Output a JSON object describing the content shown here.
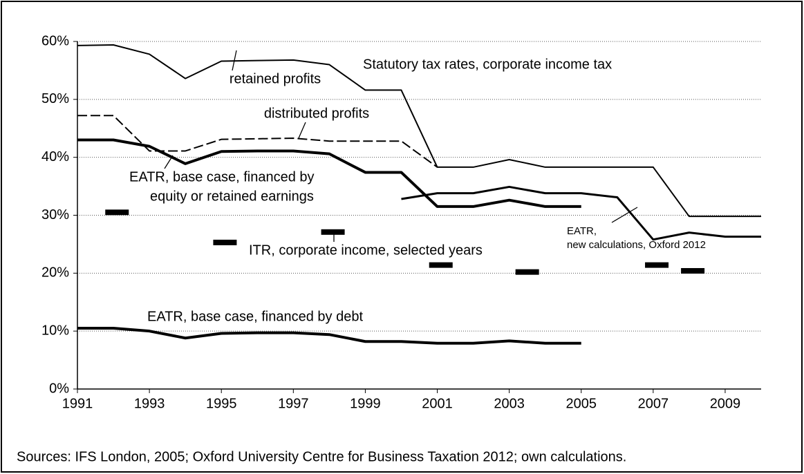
{
  "chart_data": {
    "type": "line",
    "x": [
      1991,
      1992,
      1993,
      1994,
      1995,
      1996,
      1997,
      1998,
      1999,
      2000,
      2001,
      2002,
      2003,
      2004,
      2005,
      2006,
      2007,
      2008,
      2009,
      2010
    ],
    "xlim": [
      1991,
      2010
    ],
    "xticks": [
      1991,
      1993,
      1995,
      1997,
      1999,
      2001,
      2003,
      2005,
      2007,
      2009
    ],
    "ylim": [
      0,
      60
    ],
    "yticks": [
      {
        "value": 0,
        "label": "0%"
      },
      {
        "value": 10,
        "label": "10%"
      },
      {
        "value": 20,
        "label": "20%"
      },
      {
        "value": 30,
        "label": "30%"
      },
      {
        "value": 40,
        "label": "40%"
      },
      {
        "value": 50,
        "label": "50%"
      },
      {
        "value": 60,
        "label": "60%"
      }
    ],
    "grid": true,
    "series": [
      {
        "color": "#000",
        "width": 2,
        "dash": false,
        "values": [
          59.3,
          59.4,
          57.8,
          53.6,
          56.6,
          56.7,
          56.8,
          56.0,
          51.6,
          51.6,
          38.3,
          38.3,
          39.6,
          38.3,
          38.3,
          38.3,
          38.3,
          29.8,
          29.8,
          29.8
        ]
      },
      {
        "color": "#000",
        "width": 2,
        "dash": true,
        "values": [
          47.2,
          47.2,
          41.1,
          41.1,
          43.1,
          43.2,
          43.3,
          42.8,
          42.8,
          42.8,
          38.3,
          null,
          null,
          null,
          null,
          null,
          null,
          null,
          null,
          null
        ]
      },
      {
        "color": "#000",
        "width": 4,
        "dash": false,
        "values": [
          43.0,
          43.0,
          41.9,
          38.9,
          41.0,
          41.1,
          41.1,
          40.6,
          37.4,
          37.4,
          31.5,
          31.5,
          32.6,
          31.5,
          31.5,
          null,
          null,
          null,
          null,
          null
        ]
      },
      {
        "color": "#000",
        "width": 3,
        "dash": false,
        "values": [
          null,
          null,
          null,
          null,
          null,
          null,
          null,
          null,
          null,
          32.8,
          33.8,
          33.8,
          34.9,
          33.8,
          33.8,
          33.1,
          25.8,
          27.0,
          26.3,
          26.3
        ]
      },
      {
        "color": "#000",
        "width": 4,
        "dash": false,
        "values": [
          10.5,
          10.5,
          10.0,
          8.8,
          9.6,
          9.7,
          9.7,
          9.4,
          8.2,
          8.2,
          7.9,
          7.9,
          8.3,
          7.9,
          7.9,
          null,
          null,
          null,
          null,
          null
        ]
      }
    ],
    "markers": {
      "color": "#000",
      "x": [
        1992.1,
        1995.1,
        1998.1,
        2001.1,
        2003.5,
        2007.1,
        2008.1
      ],
      "values": [
        30.5,
        25.3,
        27.1,
        21.4,
        20.2,
        21.4,
        20.4
      ]
    },
    "annotations": [
      "retained profits",
      "Statutory tax rates, corporate income tax",
      "distributed profits",
      "EATR, base case, financed by",
      "equity or retained earnings",
      "ITR, corporate income, selected years",
      "EATR,",
      "new calculations, Oxford 2012",
      "EATR, base case, financed by debt"
    ],
    "source": "Sources: IFS London, 2005; Oxford University Centre for Business Taxation 2012; own calculations."
  }
}
